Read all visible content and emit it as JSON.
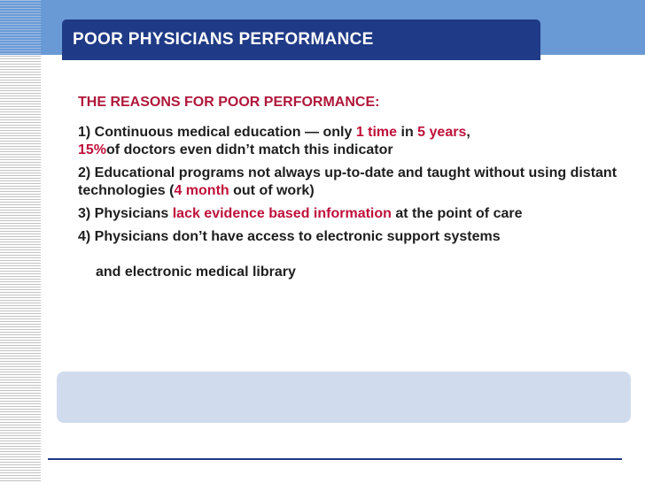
{
  "slide": {
    "title": "POOR PHYSICIANS PERFORMANCE",
    "heading": "THE REASONS FOR POOR PERFORMANCE:",
    "items": [
      {
        "line1_a": "1) Continuous medical education — only ",
        "line1_hl1": "1 time",
        "line1_b": " in ",
        "line1_hl2": "5 years",
        "line1_c": ",",
        "line2_hl": "15%",
        "line2_a": "of doctors even didn’t match this indicator"
      },
      {
        "a": "2) Educational programs not always up-to-date and taught without using distant technologies (",
        "hl": "4 month",
        "b": " out of work)"
      },
      {
        "a": "3) Physicians ",
        "hl": "lack evidence based information",
        "b": " at the point of care"
      },
      {
        "a": "4) Physicians don’t have access to electronic support systems",
        "cont": "and electronic medical library"
      }
    ]
  },
  "colors": {
    "title_bar": "#1f3a86",
    "top_band": "#6a9ad6",
    "highlight": "#c0103a",
    "bottom_box": "#d0dcee"
  }
}
